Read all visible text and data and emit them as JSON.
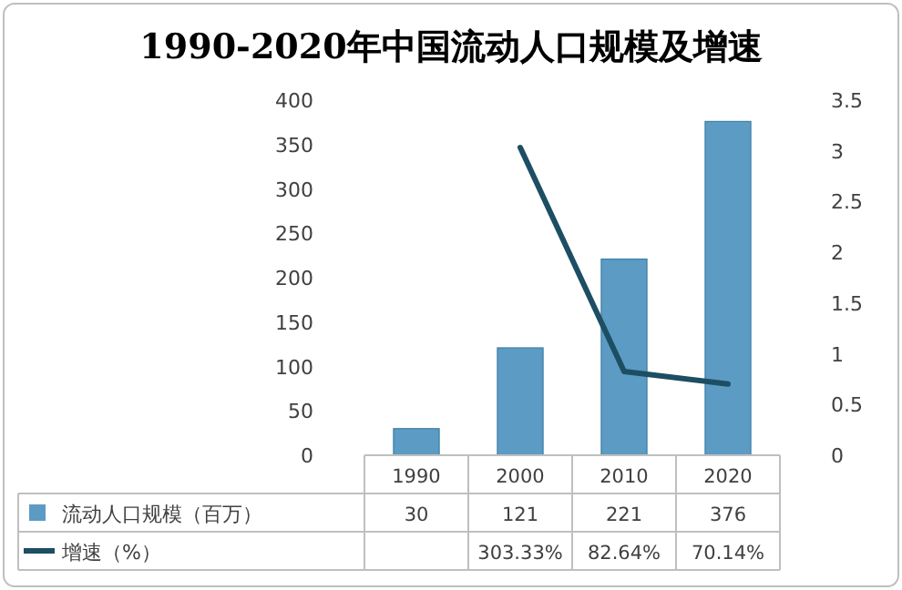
{
  "chart_data": {
    "type": "bar",
    "title": "1990-2020年中国流动人口规模及增速",
    "categories": [
      "1990",
      "2000",
      "2010",
      "2020"
    ],
    "series": [
      {
        "name": "流动人口规模（百万）",
        "color": "#5b9bc4",
        "values": [
          30,
          121,
          221,
          376
        ],
        "value_labels": [
          "30",
          "121",
          "221",
          "376"
        ]
      },
      {
        "name": "增速（%）",
        "type": "line",
        "axis": "y2",
        "color": "#1d4e63",
        "values": [
          null,
          3.0333,
          0.8264,
          0.7014
        ],
        "value_labels": [
          null,
          "303.33%",
          "82.64%",
          "70.14%"
        ]
      }
    ],
    "ylim": [
      0,
      400
    ],
    "yticks": [
      0,
      50,
      100,
      150,
      200,
      250,
      300,
      350,
      400
    ],
    "y2lim": [
      0,
      3.5
    ],
    "y2ticks": [
      0,
      0.5,
      1,
      1.5,
      2,
      2.5,
      3,
      3.5
    ],
    "legend": "bottom"
  }
}
